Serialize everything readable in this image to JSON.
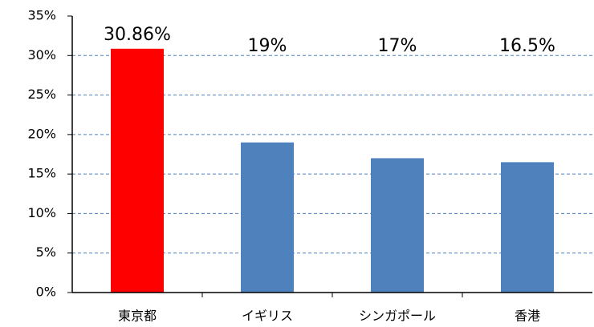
{
  "chart_data": {
    "type": "bar",
    "categories": [
      "東京都",
      "イギリス",
      "シンガポール",
      "香港"
    ],
    "values": [
      30.86,
      19,
      17,
      16.5
    ],
    "value_labels": [
      "30.86%",
      "19%",
      "17%",
      "16.5%"
    ],
    "colors": [
      "#ff0000",
      "#4f81bd",
      "#4f81bd",
      "#4f81bd"
    ],
    "ylim": [
      0,
      35
    ],
    "yticks": [
      {
        "value": 0,
        "label": "0%"
      },
      {
        "value": 5,
        "label": "5%"
      },
      {
        "value": 10,
        "label": "10%"
      },
      {
        "value": 15,
        "label": "15%"
      },
      {
        "value": 20,
        "label": "20%"
      },
      {
        "value": 25,
        "label": "25%"
      },
      {
        "value": 30,
        "label": "30%"
      },
      {
        "value": 35,
        "label": "35%"
      }
    ],
    "grid": true
  }
}
